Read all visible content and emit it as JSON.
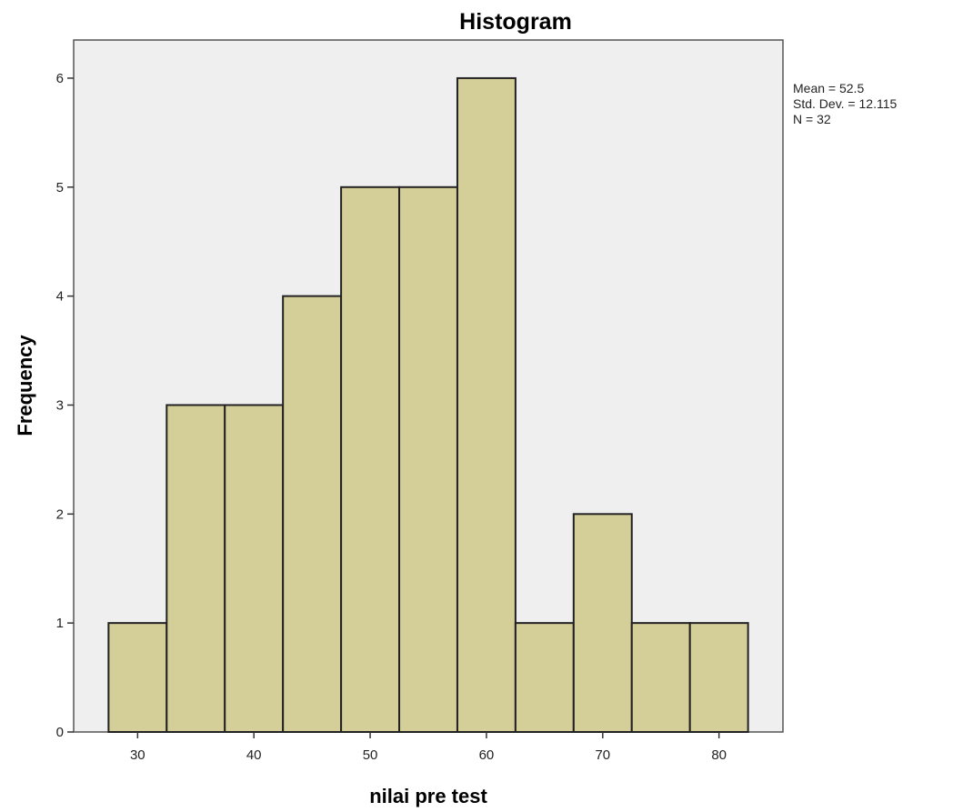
{
  "chart_data": {
    "type": "bar",
    "title": "Histogram",
    "xlabel": "nilai pre test",
    "ylabel": "Frequency",
    "bin_width": 5,
    "bins": [
      {
        "center": 30,
        "value": 1
      },
      {
        "center": 35,
        "value": 3
      },
      {
        "center": 40,
        "value": 3
      },
      {
        "center": 45,
        "value": 4
      },
      {
        "center": 50,
        "value": 5
      },
      {
        "center": 55,
        "value": 5
      },
      {
        "center": 60,
        "value": 6
      },
      {
        "center": 65,
        "value": 1
      },
      {
        "center": 70,
        "value": 2
      },
      {
        "center": 75,
        "value": 1
      },
      {
        "center": 80,
        "value": 1
      }
    ],
    "xticks": [
      "30",
      "40",
      "50",
      "60",
      "70",
      "80"
    ],
    "yticks": [
      "0",
      "1",
      "2",
      "3",
      "4",
      "5",
      "6"
    ],
    "xlim": [
      24.5,
      85.5
    ],
    "ylim": [
      0,
      6.35
    ],
    "grid": false,
    "bar_color": "#d4ce98",
    "bar_edge_color": "#222222",
    "plot_background": "#efefef",
    "stats": {
      "mean": "Mean = 52.5",
      "std_dev": "Std. Dev. = 12.115",
      "n": "N = 32"
    }
  }
}
